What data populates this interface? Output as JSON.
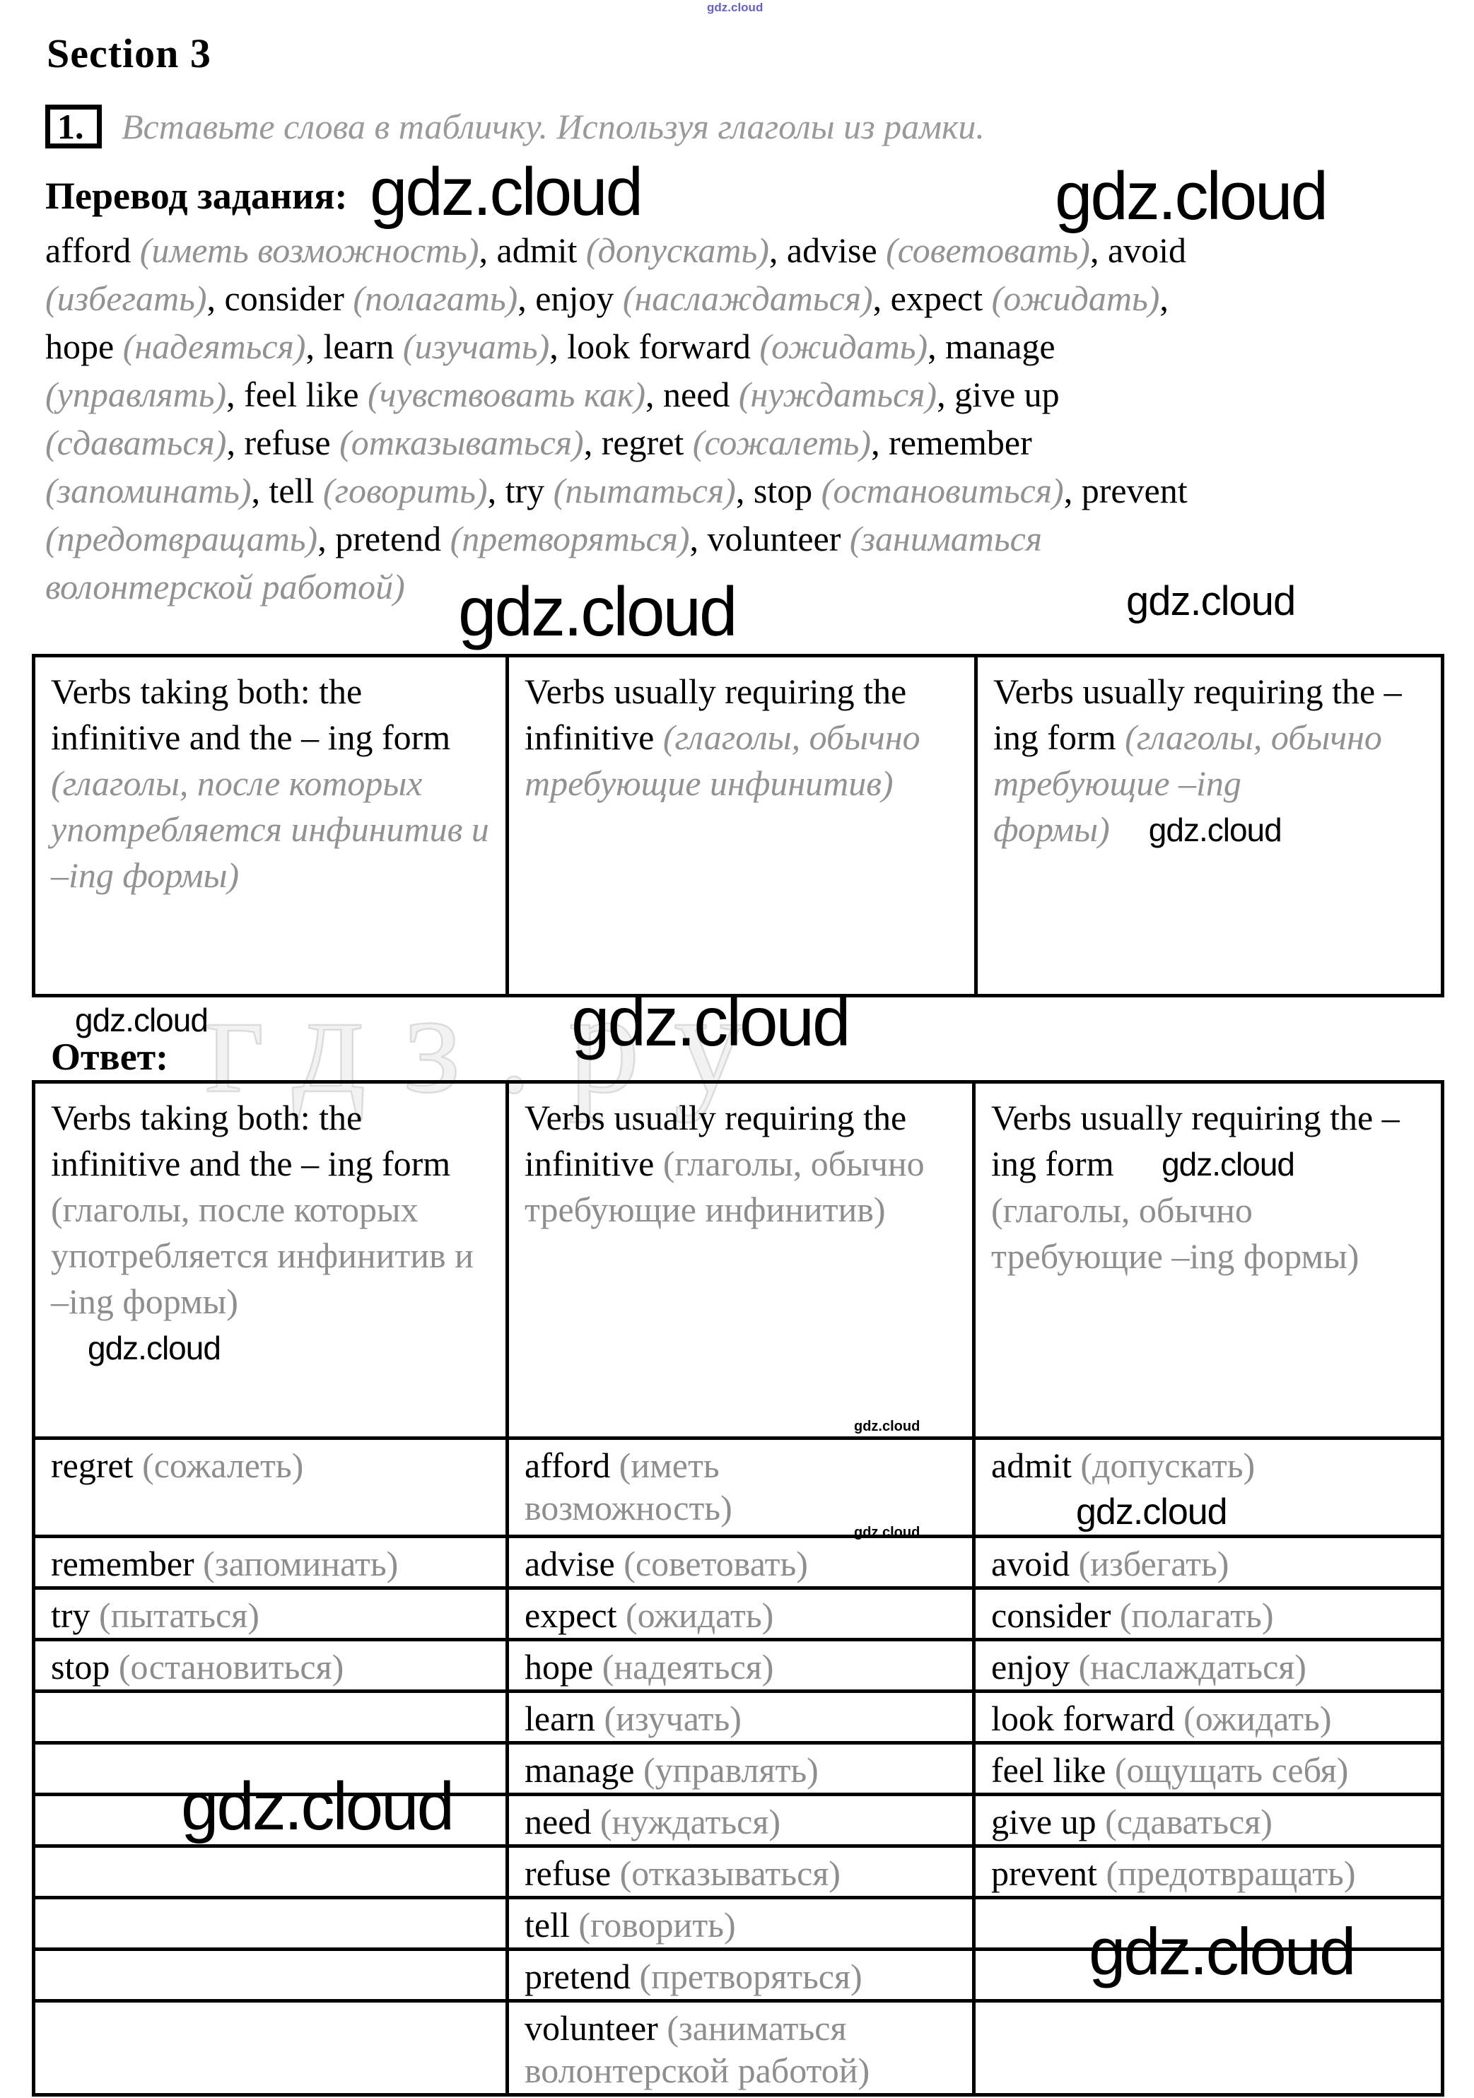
{
  "page": {
    "section_title": "Section 3",
    "task_number": "1.",
    "task_instruction": "Вставьте слова в табличку. Используя глаголы из рамки.",
    "translation_label": "Перевод задания:",
    "answer_label": "Ответ:"
  },
  "colors": {
    "text": "#000000",
    "muted_gray": "#8e8e8e",
    "instruction_gray": "#9a9a9a",
    "brand_blue": "#5550c7",
    "border": "#000000"
  },
  "watermark": {
    "brand": "gdz.cloud",
    "ghost_text": "гдз.ру"
  },
  "word_bank": {
    "lines": [
      [
        {
          "t": "afford ",
          "c": "en"
        },
        {
          "t": "(иметь возможность)",
          "c": "rui"
        },
        {
          "t": ", admit ",
          "c": "en"
        },
        {
          "t": "(допускать)",
          "c": "rui"
        },
        {
          "t": ",  advise ",
          "c": "en"
        },
        {
          "t": "(советовать)",
          "c": "rui"
        },
        {
          "t": ",  avoid",
          "c": "en"
        }
      ],
      [
        {
          "t": "(избегать)",
          "c": "rui"
        },
        {
          "t": ",  consider ",
          "c": "en"
        },
        {
          "t": "(полагать)",
          "c": "rui"
        },
        {
          "t": ", enjoy ",
          "c": "en"
        },
        {
          "t": "(наслаждаться)",
          "c": "rui"
        },
        {
          "t": ", expect ",
          "c": "en"
        },
        {
          "t": "(ожидать)",
          "c": "rui"
        },
        {
          "t": ",",
          "c": "en"
        }
      ],
      [
        {
          "t": "hope ",
          "c": "en"
        },
        {
          "t": "(надеяться)",
          "c": "rui"
        },
        {
          "t": ", learn ",
          "c": "en"
        },
        {
          "t": "(изучать)",
          "c": "rui"
        },
        {
          "t": ", look forward ",
          "c": "en"
        },
        {
          "t": "(ожидать)",
          "c": "rui"
        },
        {
          "t": ", manage",
          "c": "en"
        }
      ],
      [
        {
          "t": "(управлять)",
          "c": "rui"
        },
        {
          "t": ", feel like ",
          "c": "en"
        },
        {
          "t": "(чувствовать как)",
          "c": "rui"
        },
        {
          "t": ", need ",
          "c": "en"
        },
        {
          "t": "(нуждаться)",
          "c": "rui"
        },
        {
          "t": ", give up",
          "c": "en"
        }
      ],
      [
        {
          "t": "(сдаваться)",
          "c": "rui"
        },
        {
          "t": ", refuse ",
          "c": "en"
        },
        {
          "t": "(отказываться)",
          "c": "rui"
        },
        {
          "t": ", regret ",
          "c": "en"
        },
        {
          "t": "(сожалеть)",
          "c": "rui"
        },
        {
          "t": ", remember",
          "c": "en"
        }
      ],
      [
        {
          "t": "(запоминать)",
          "c": "rui"
        },
        {
          "t": ", tell ",
          "c": "en"
        },
        {
          "t": "(говорить)",
          "c": "rui"
        },
        {
          "t": ", try ",
          "c": "en"
        },
        {
          "t": "(пытаться)",
          "c": "rui"
        },
        {
          "t": ", stop ",
          "c": "en"
        },
        {
          "t": "(остановиться)",
          "c": "rui"
        },
        {
          "t": ", prevent",
          "c": "en"
        }
      ],
      [
        {
          "t": "(предотвращать)",
          "c": "rui"
        },
        {
          "t": ", pretend ",
          "c": "en"
        },
        {
          "t": "(претворяться)",
          "c": "rui"
        },
        {
          "t": ", volunteer ",
          "c": "en"
        },
        {
          "t": "(заниматься",
          "c": "rui"
        }
      ],
      [
        {
          "t": "волонтерской работой)",
          "c": "rui"
        }
      ]
    ]
  },
  "table1": {
    "headers": [
      [
        {
          "t": "Verbs taking both: the infinitive and the – ing form ",
          "c": "en"
        },
        {
          "t": "(глаголы, после которых употребляется инфинитив и –ing формы)",
          "c": "rui"
        }
      ],
      [
        {
          "t": "Verbs usually requiring the infinitive ",
          "c": "en"
        },
        {
          "t": "(глаголы, обычно требующие инфинитив)",
          "c": "rui"
        }
      ],
      [
        {
          "t": "Verbs usually requiring the –ing form ",
          "c": "en"
        },
        {
          "t": "(глаголы, обычно требующие –ing формы)",
          "c": "rui"
        },
        {
          "t": "gdz.cloud",
          "c": "wm"
        }
      ]
    ]
  },
  "table2": {
    "headers": [
      [
        {
          "t": "Verbs taking both: the infinitive and the – ing form ",
          "c": "en"
        },
        {
          "t": "(глаголы, после которых употребляется инфинитив и –ing формы)",
          "c": "ru"
        },
        {
          "c": "br"
        },
        {
          "t": "gdz.cloud",
          "c": "wmhead"
        }
      ],
      [
        {
          "t": "Verbs usually requiring the infinitive ",
          "c": "en"
        },
        {
          "t": "(глаголы, обычно требующие инфинитив)",
          "c": "ru"
        }
      ],
      [
        {
          "t": "Verbs usually requiring the –ing form ",
          "c": "en"
        },
        {
          "t": "gdz.cloud",
          "c": "wm"
        },
        {
          "c": "br"
        },
        {
          "t": "(глаголы, обычно требующие –ing формы)",
          "c": "ru"
        }
      ]
    ],
    "rows": [
      [
        [
          {
            "t": "regret ",
            "c": "en"
          },
          {
            "t": "(сожалеть)",
            "c": "ru"
          }
        ],
        [
          {
            "t": "afford ",
            "c": "en"
          },
          {
            "t": "(иметь",
            "c": "ru"
          },
          {
            "c": "br"
          },
          {
            "t": "возможность)",
            "c": "ru"
          }
        ],
        [
          {
            "t": "admit ",
            "c": "en"
          },
          {
            "t": "(допускать)",
            "c": "ru"
          },
          {
            "c": "br"
          },
          {
            "t": "gdz.cloud",
            "c": "wmcell"
          }
        ]
      ],
      [
        [
          {
            "t": "remember ",
            "c": "en"
          },
          {
            "t": "(запоминать)",
            "c": "ru"
          }
        ],
        [
          {
            "t": "advise ",
            "c": "en"
          },
          {
            "t": "(советовать)",
            "c": "ru"
          }
        ],
        [
          {
            "t": "avoid ",
            "c": "en"
          },
          {
            "t": "(избегать)",
            "c": "ru"
          }
        ]
      ],
      [
        [
          {
            "t": "try ",
            "c": "en"
          },
          {
            "t": "(пытаться)",
            "c": "ru"
          }
        ],
        [
          {
            "t": "expect ",
            "c": "en"
          },
          {
            "t": "(ожидать)",
            "c": "ru"
          }
        ],
        [
          {
            "t": "consider ",
            "c": "en"
          },
          {
            "t": "(полагать)",
            "c": "ru"
          }
        ]
      ],
      [
        [
          {
            "t": "stop ",
            "c": "en"
          },
          {
            "t": "(остановиться)",
            "c": "ru"
          }
        ],
        [
          {
            "t": "hope ",
            "c": "en"
          },
          {
            "t": "(надеяться)",
            "c": "ru"
          }
        ],
        [
          {
            "t": "enjoy ",
            "c": "en"
          },
          {
            "t": "(наслаждаться)",
            "c": "ru"
          }
        ]
      ],
      [
        [],
        [
          {
            "t": "learn ",
            "c": "en"
          },
          {
            "t": "(изучать)",
            "c": "ru"
          }
        ],
        [
          {
            "t": "look forward ",
            "c": "en"
          },
          {
            "t": "(ожидать)",
            "c": "ru"
          }
        ]
      ],
      [
        [],
        [
          {
            "t": "manage ",
            "c": "en"
          },
          {
            "t": "(управлять)",
            "c": "ru"
          }
        ],
        [
          {
            "t": "feel like ",
            "c": "en"
          },
          {
            "t": "(ощущать себя)",
            "c": "ru"
          }
        ]
      ],
      [
        [],
        [
          {
            "t": "need ",
            "c": "en"
          },
          {
            "t": "(нуждаться)",
            "c": "ru"
          }
        ],
        [
          {
            "t": "give up ",
            "c": "en"
          },
          {
            "t": "(сдаваться)",
            "c": "ru"
          }
        ]
      ],
      [
        [],
        [
          {
            "t": "refuse ",
            "c": "en"
          },
          {
            "t": "(отказываться)",
            "c": "ru"
          }
        ],
        [
          {
            "t": "prevent ",
            "c": "en"
          },
          {
            "t": "(предотвращать)",
            "c": "ru"
          }
        ]
      ],
      [
        [],
        [
          {
            "t": "tell ",
            "c": "en"
          },
          {
            "t": "(говорить)",
            "c": "ru"
          }
        ],
        []
      ],
      [
        [],
        [
          {
            "t": "pretend ",
            "c": "en"
          },
          {
            "t": "(претворяться)",
            "c": "ru"
          }
        ],
        []
      ],
      [
        [],
        [
          {
            "t": "volunteer ",
            "c": "en"
          },
          {
            "t": "(заниматься",
            "c": "ru"
          },
          {
            "c": "br"
          },
          {
            "t": "волонтерской работой)",
            "c": "ru"
          }
        ],
        []
      ]
    ]
  }
}
